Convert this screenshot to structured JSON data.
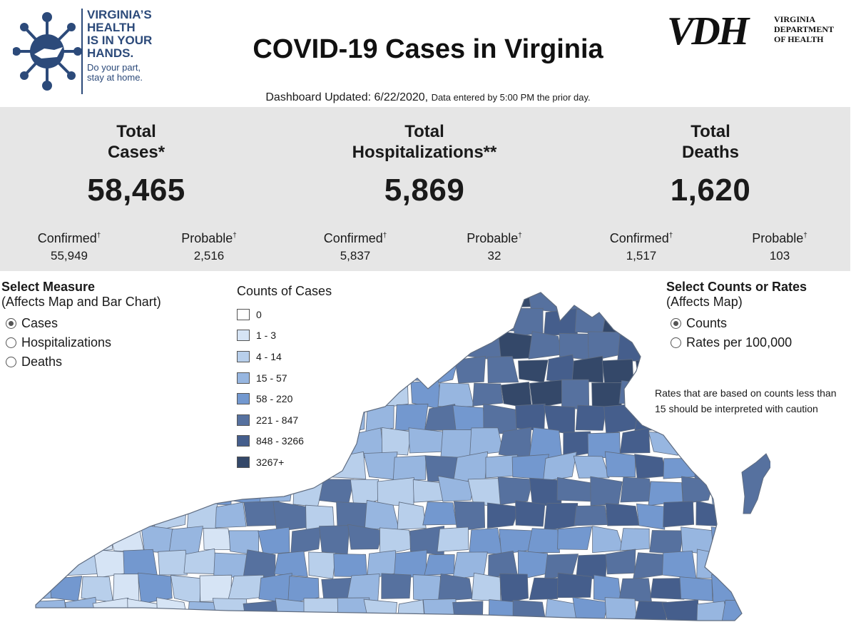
{
  "header": {
    "logo_left": {
      "lines": [
        "VIRGINIA’S",
        "HEALTH",
        "IS IN YOUR",
        "HANDS."
      ],
      "sub": [
        "Do your part,",
        "stay at home."
      ]
    },
    "title": "COVID-19 Cases in Virginia",
    "logo_right": {
      "mark": "VDH",
      "words": [
        "VIRGINIA",
        "DEPARTMENT",
        "OF HEALTH"
      ]
    },
    "updated_label": "Dashboard Updated: 6/22/2020,",
    "updated_note": "Data entered by 5:00 PM the prior day."
  },
  "stats": [
    {
      "title": "Total Cases*",
      "value": "58,465",
      "confirmed_label": "Confirmed",
      "confirmed": "55,949",
      "probable_label": "Probable",
      "probable": "2,516"
    },
    {
      "title": "Total Hospitalizations**",
      "value": "5,869",
      "confirmed_label": "Confirmed",
      "confirmed": "5,837",
      "probable_label": "Probable",
      "probable": "32"
    },
    {
      "title": "Total Deaths",
      "value": "1,620",
      "confirmed_label": "Confirmed",
      "confirmed": "1,517",
      "probable_label": "Probable",
      "probable": "103"
    }
  ],
  "dagger": "†",
  "measure": {
    "title": "Select Measure",
    "subtitle": "(Affects Map and Bar Chart)",
    "options": [
      "Cases",
      "Hospitalizations",
      "Deaths"
    ],
    "selected": "Cases"
  },
  "legend": {
    "title": "Counts of Cases",
    "items": [
      {
        "label": "0",
        "color": "#ffffff"
      },
      {
        "label": "1 - 3",
        "color": "#d6e4f5"
      },
      {
        "label": "4 - 14",
        "color": "#b8cfeb"
      },
      {
        "label": "15 - 57",
        "color": "#97b6e0"
      },
      {
        "label": "58 - 220",
        "color": "#7398cf"
      },
      {
        "label": "221 - 847",
        "color": "#56719f"
      },
      {
        "label": "848 - 3266",
        "color": "#455e8c"
      },
      {
        "label": "3267+",
        "color": "#344869"
      }
    ]
  },
  "counts_rates": {
    "title": "Select Counts or Rates",
    "subtitle": "(Affects Map)",
    "options": [
      "Counts",
      "Rates per 100,000"
    ],
    "selected": "Counts"
  },
  "note": "Rates that are based on counts less than 15 should be interpreted with caution",
  "colors": {
    "brand_blue": "#2c4a7a",
    "band_gray": "#e6e6e6",
    "county_border": "#5f6c80"
  }
}
